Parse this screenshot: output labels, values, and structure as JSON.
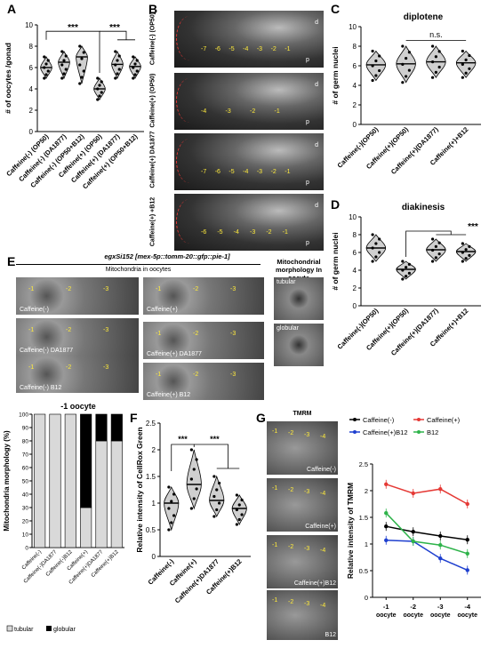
{
  "panels": {
    "A": {
      "label": "A",
      "ylabel": "# of oocytes /gonad",
      "yticks": [
        "0",
        "2",
        "4",
        "6",
        "8",
        "10"
      ],
      "sig": [
        "***",
        "***"
      ],
      "categories": [
        "Caffeine(-) (OP50)",
        "Caffeine(-) (DA1877)",
        "Caffeine(-) (OP50+B12)",
        "Caffeine(+) (OP50)",
        "Caffeine(+) (DA1877)",
        "Caffeine(+) (OP50+B12)"
      ]
    },
    "B": {
      "label": "B",
      "rows": [
        {
          "side": "Caffeine(-) (OP50)",
          "nums": [
            "-7",
            "-6",
            "-5",
            "-4",
            "-3",
            "-2",
            "-1"
          ]
        },
        {
          "side": "Caffeine(+) (OP50)",
          "nums": [
            "-4",
            "-3",
            "-2",
            "-1"
          ]
        },
        {
          "side": "Caffeine(+) DA1877",
          "nums": [
            "-7",
            "-6",
            "-5",
            "-4",
            "-3",
            "-2",
            "-1"
          ]
        },
        {
          "side": "Caffeine(+) +B12",
          "nums": [
            "-6",
            "-5",
            "-4",
            "-3",
            "-2",
            "-1"
          ]
        }
      ],
      "d": "d",
      "p": "p"
    },
    "C": {
      "label": "C",
      "title": "diplotene",
      "ylabel": "# of germ nuclei",
      "yticks": [
        "0",
        "2",
        "4",
        "6",
        "8",
        "10"
      ],
      "ns": "n.s.",
      "categories": [
        "Caffeine(-)(OP50)",
        "Caffeine(+)(OP50)",
        "Caffeine(+)(DA1877)",
        "Caffeine(+)+B12"
      ]
    },
    "D": {
      "label": "D",
      "title": "diakinesis",
      "ylabel": "# of germ nuclei",
      "yticks": [
        "0",
        "2",
        "4",
        "6",
        "8",
        "10"
      ],
      "sig": "***",
      "categories": [
        "Caffeine(-)(OP50)",
        "Caffeine(+)(OP50)",
        "Caffeine(+)(DA1877)",
        "Caffeine(+)+B12"
      ]
    },
    "E": {
      "label": "E",
      "header": "egxSi152 [mex-5p::tomm-20::gfp::pie-1]",
      "sub": "Mitochondria in oocytes",
      "morph_title": "Mitochondrial morphology In oocyte",
      "tubular": "tubular",
      "globular": "globular",
      "images": [
        "Caffeine(-)",
        "Caffeine(+)",
        "Caffeine(-) DA1877",
        "Caffeine(+) DA1877",
        "Caffeine(-) B12",
        "Caffeine(+) B12"
      ],
      "nums": [
        "-1",
        "-2",
        "-3"
      ]
    },
    "Ebar": {
      "title": "-1 oocyte",
      "ylabel": "Mitochondria morphology (%)",
      "yticks": [
        "0",
        "10",
        "20",
        "30",
        "40",
        "50",
        "60",
        "70",
        "80",
        "90",
        "100"
      ],
      "legend": [
        "tubular",
        "globular"
      ]
    },
    "F": {
      "label": "F",
      "ylabel": "Relative intensity of CellRox Green",
      "yticks": [
        "0",
        "0.5",
        "1",
        "1.5",
        "2",
        "2.5"
      ],
      "sig": [
        "***",
        "***"
      ],
      "categories": [
        "Caffeine(-)",
        "Caffeine(+)",
        "Caffeine(+)DA1877",
        "Caffeine(+)B12"
      ]
    },
    "G": {
      "label": "G",
      "img_title": "TMRM",
      "images": [
        "Caffeine(-)",
        "Caffeine(+)",
        "Caffeine(+)B12",
        "B12"
      ],
      "nums": [
        "-1",
        "-2",
        "-3",
        "-4"
      ],
      "ylabel": "Relative intensity of TMRM",
      "yticks": [
        "0",
        "0.5",
        "1",
        "1.5",
        "2",
        "2.5"
      ],
      "xlabels": [
        "-1 oocyte",
        "-2 oocyte",
        "-3 oocyte",
        "-4 oocyte"
      ]
    }
  },
  "chart_data": [
    {
      "type": "violin",
      "title": "",
      "ylabel": "# of oocytes /gonad",
      "ylim": [
        0,
        10
      ],
      "categories": [
        "Caffeine(-) (OP50)",
        "Caffeine(-) (DA1877)",
        "Caffeine(-) (OP50+B12)",
        "Caffeine(+) (OP50)",
        "Caffeine(+) (DA1877)",
        "Caffeine(+) (OP50+B12)"
      ],
      "medians": [
        6,
        6.5,
        7,
        4,
        6.3,
        6.1
      ],
      "mins": [
        5,
        5,
        4.5,
        3,
        5,
        5
      ],
      "maxs": [
        7,
        7.5,
        8,
        5,
        7.5,
        7
      ]
    },
    {
      "type": "violin",
      "title": "diplotene",
      "ylabel": "# of germ nuclei",
      "ylim": [
        0,
        10
      ],
      "categories": [
        "Caffeine(-)(OP50)",
        "Caffeine(+)(OP50)",
        "Caffeine(+)(DA1877)",
        "Caffeine(+)+B12"
      ],
      "medians": [
        6.1,
        6.2,
        6.4,
        6.3
      ],
      "mins": [
        4.5,
        4.3,
        4.8,
        4.8
      ],
      "maxs": [
        7.5,
        8,
        8,
        7.5
      ]
    },
    {
      "type": "violin",
      "title": "diakinesis",
      "ylabel": "# of germ nuclei",
      "ylim": [
        0,
        10
      ],
      "categories": [
        "Caffeine(-)(OP50)",
        "Caffeine(+)(OP50)",
        "Caffeine(+)(DA1877)",
        "Caffeine(+)+B12"
      ],
      "medians": [
        6.5,
        4.1,
        6.3,
        6.1
      ],
      "mins": [
        5,
        3,
        5,
        5
      ],
      "maxs": [
        8,
        5,
        7.5,
        7
      ]
    },
    {
      "type": "bar",
      "stacked": true,
      "title": "-1 oocyte",
      "ylabel": "Mitochondria morphology (%)",
      "ylim": [
        0,
        100
      ],
      "categories": [
        "Caffeine(-)",
        "Caffeine(-)DA1877",
        "Caffeine(-)B12",
        "Caffeine(+)",
        "Caffeine(+)DA1877",
        "Caffeine(+)B12"
      ],
      "series": [
        {
          "name": "tubular",
          "values": [
            100,
            100,
            100,
            30,
            80,
            80
          ]
        },
        {
          "name": "globular",
          "values": [
            0,
            0,
            0,
            70,
            20,
            20
          ]
        }
      ]
    },
    {
      "type": "violin",
      "ylabel": "Relative intensity of CellRox Green",
      "ylim": [
        0,
        2.5
      ],
      "categories": [
        "Caffeine(-)",
        "Caffeine(+)",
        "Caffeine(+)DA1877",
        "Caffeine(+)B12"
      ],
      "medians": [
        1.0,
        1.35,
        1.05,
        0.9
      ],
      "mins": [
        0.5,
        0.9,
        0.75,
        0.6
      ],
      "maxs": [
        1.3,
        2.0,
        1.5,
        1.15
      ]
    },
    {
      "type": "line",
      "ylabel": "Relative intensity of TMRM",
      "ylim": [
        0,
        2.5
      ],
      "categories": [
        "-1 oocyte",
        "-2 oocyte",
        "-3 oocyte",
        "-4 oocyte"
      ],
      "series": [
        {
          "name": "Caffeine(-)",
          "color": "#000000",
          "values": [
            1.33,
            1.23,
            1.15,
            1.08
          ]
        },
        {
          "name": "Caffeine(+)",
          "color": "#e53935",
          "values": [
            2.12,
            1.95,
            2.03,
            1.75
          ]
        },
        {
          "name": "Caffeine(+)B12",
          "color": "#1e3fcf",
          "values": [
            1.07,
            1.05,
            0.73,
            0.51
          ]
        },
        {
          "name": "B12",
          "color": "#2eb34a",
          "values": [
            1.58,
            1.05,
            0.98,
            0.82
          ]
        }
      ]
    }
  ]
}
